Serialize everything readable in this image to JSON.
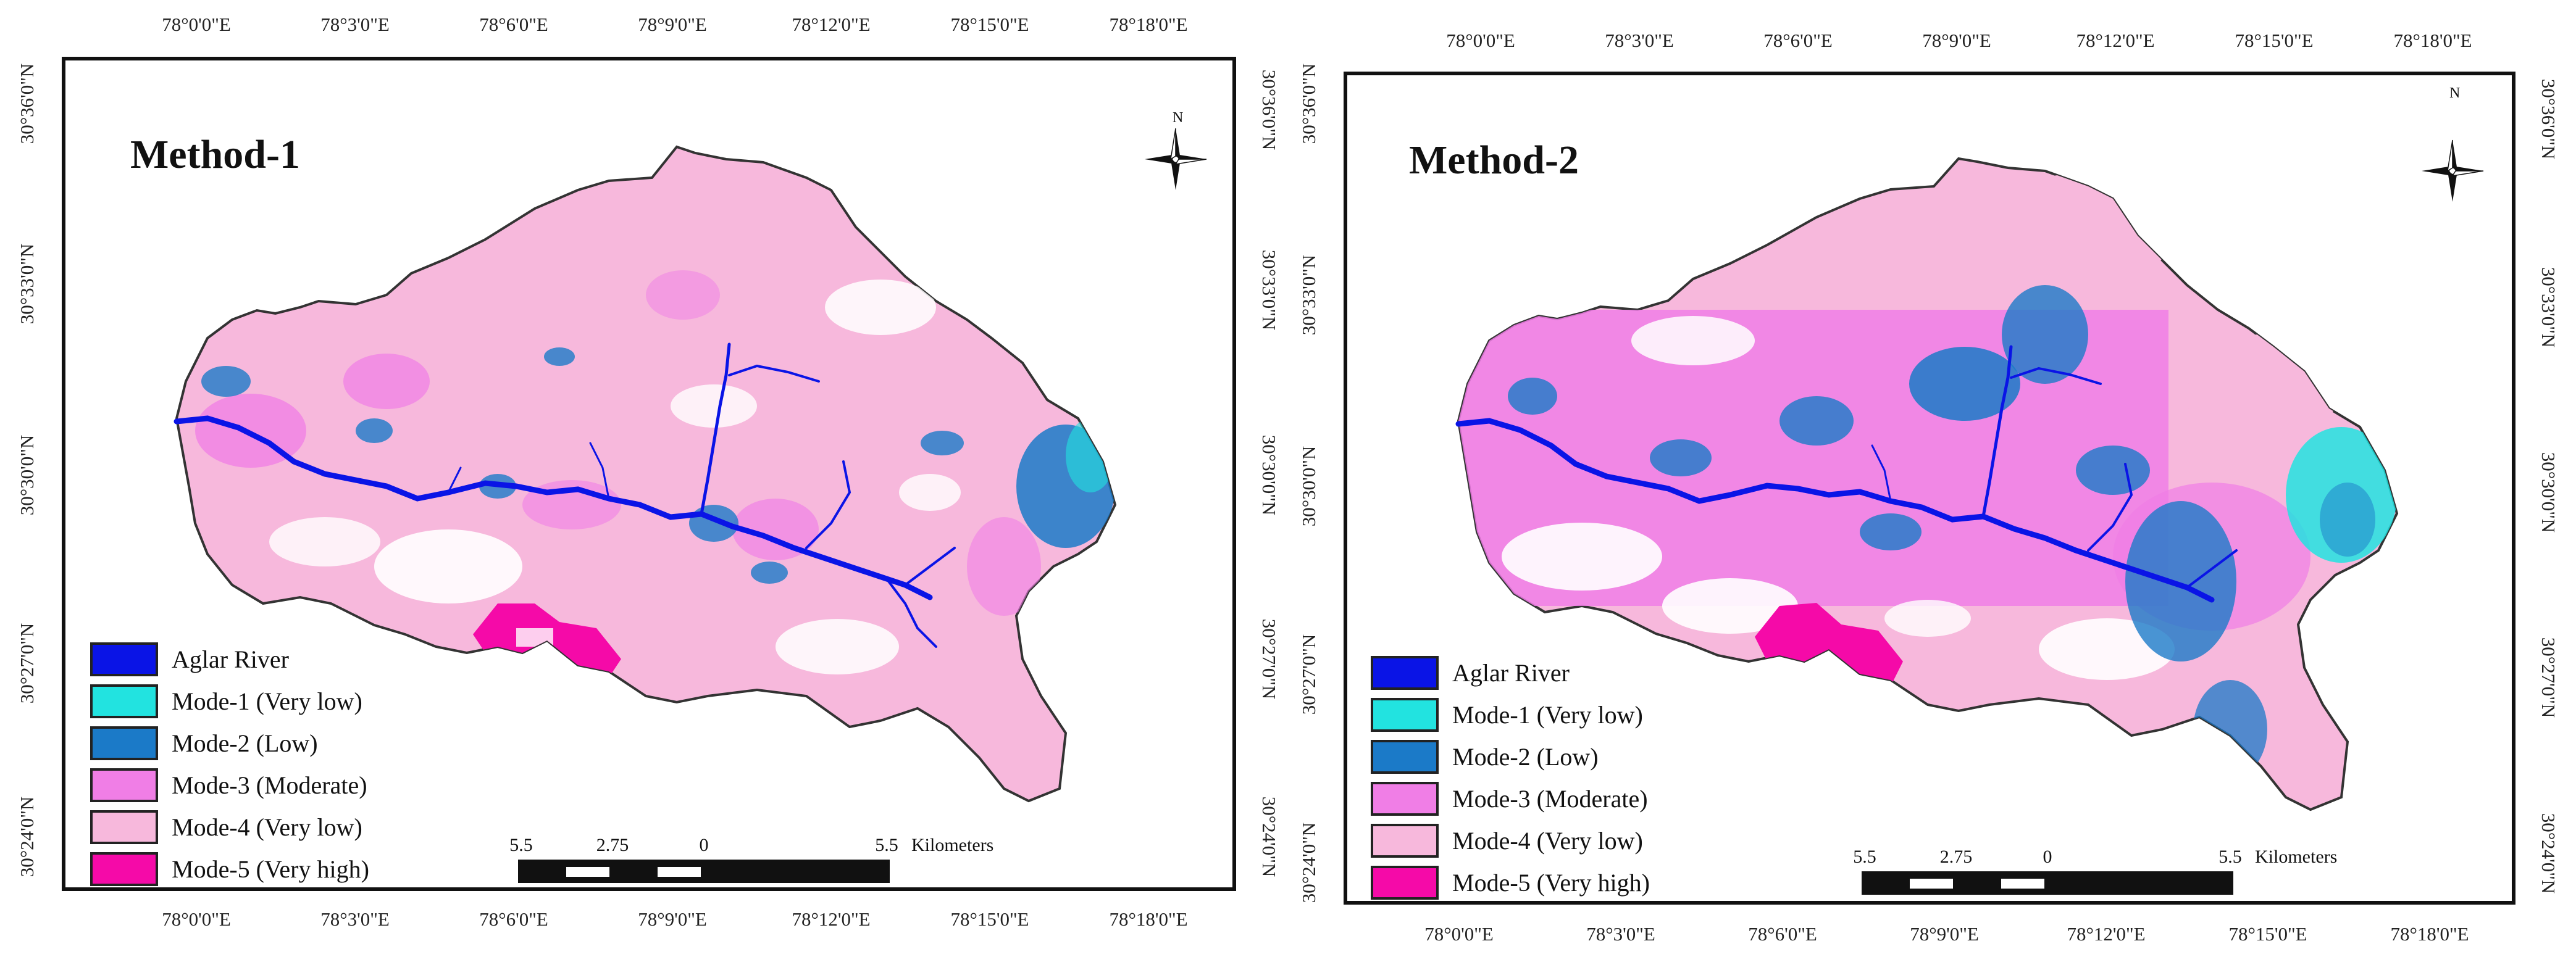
{
  "panels": [
    {
      "title": "Method-1",
      "lon_ticks": [
        "78°0'0\"E",
        "78°3'0\"E",
        "78°6'0\"E",
        "78°9'0\"E",
        "78°12'0\"E",
        "78°15'0\"E",
        "78°18'0\"E"
      ],
      "lat_ticks_left": [
        "30°36'0\"N",
        "30°33'0\"N",
        "30°30'0\"N",
        "30°27'0\"N",
        "30°24'0\"N"
      ],
      "lat_ticks_right": [
        "30°36'0\"N",
        "30°33'0\"N",
        "30°30'0\"N",
        "30°27'0\"N",
        "30°24'0\"N"
      ],
      "north": "N",
      "scale": {
        "labels": [
          "5.5",
          "2.75",
          "0",
          "5.5"
        ],
        "unit": "Kilometers"
      },
      "legend": [
        {
          "label": "Aglar River",
          "color": "#0a14e6"
        },
        {
          "label": "Mode-1 (Very low)",
          "color": "#22e3e0"
        },
        {
          "label": "Mode-2 (Low)",
          "color": "#1b7ac8"
        },
        {
          "label": "Mode-3 (Moderate)",
          "color": "#f07ee6"
        },
        {
          "label": "Mode-4 (Very low)",
          "color": "#f7b8dc"
        },
        {
          "label": "Mode-5 (Very high)",
          "color": "#f50aa8"
        }
      ]
    },
    {
      "title": "Method-2",
      "lon_ticks": [
        "78°0'0\"E",
        "78°3'0\"E",
        "78°6'0\"E",
        "78°9'0\"E",
        "78°12'0\"E",
        "78°15'0\"E",
        "78°18'0\"E"
      ],
      "lat_ticks_left": [
        "30°36'0\"N",
        "30°33'0\"N",
        "30°30'0\"N",
        "30°27'0\"N",
        "30°24'0\"N"
      ],
      "lat_ticks_right": [
        "30°36'0\"N",
        "30°33'0\"N",
        "30°30'0\"N",
        "30°27'0\"N",
        "30°24'0\"N"
      ],
      "north": "N",
      "scale": {
        "labels": [
          "5.5",
          "2.75",
          "0",
          "5.5"
        ],
        "unit": "Kilometers"
      },
      "legend": [
        {
          "label": "Aglar River",
          "color": "#0a14e6"
        },
        {
          "label": "Mode-1 (Very low)",
          "color": "#22e3e0"
        },
        {
          "label": "Mode-2 (Low)",
          "color": "#1b7ac8"
        },
        {
          "label": "Mode-3 (Moderate)",
          "color": "#f07ee6"
        },
        {
          "label": "Mode-4 (Very low)",
          "color": "#f7b8dc"
        },
        {
          "label": "Mode-5 (Very high)",
          "color": "#f50aa8"
        }
      ]
    }
  ]
}
